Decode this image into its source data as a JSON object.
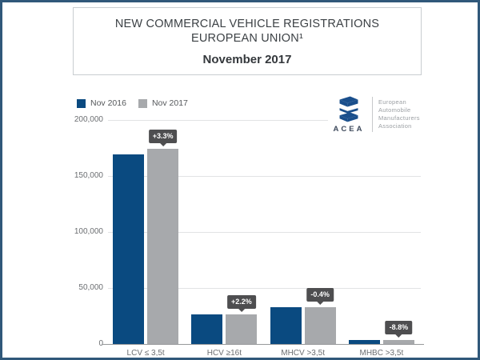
{
  "window": {
    "border_color": "#30587a"
  },
  "title_box": {
    "line1": "NEW COMMERCIAL VEHICLE REGISTRATIONS",
    "line2": "EUROPEAN UNION¹",
    "subtitle": "November 2017"
  },
  "legend": {
    "items": [
      {
        "label": "Nov 2016",
        "color": "#0a4a80"
      },
      {
        "label": "Nov 2017",
        "color": "#a7a9ac"
      }
    ]
  },
  "logo": {
    "icon": "stacked-layers-icon",
    "acronym": "ACEA",
    "org_lines": [
      "European",
      "Automobile",
      "Manufacturers",
      "Association"
    ],
    "mark_color": "#1a4f8c"
  },
  "chart_data": {
    "type": "bar",
    "title": "New Commercial Vehicle Registrations, European Union — November 2017",
    "categories": [
      "LCV ≤ 3,5t",
      "HCV ≥16t",
      "MHCV >3,5t",
      "MHBC >3,5t"
    ],
    "series": [
      {
        "name": "Nov 2016",
        "color": "#0a4a80",
        "values": [
          169000,
          26200,
          32900,
          3800
        ]
      },
      {
        "name": "Nov 2017",
        "color": "#a7a9ac",
        "values": [
          174600,
          26780,
          32770,
          3470
        ]
      }
    ],
    "pct_change_labels": [
      "+3.3%",
      "+2.2%",
      "-0.4%",
      "-8.8%"
    ],
    "xlabel": "",
    "ylabel": "",
    "ylim": [
      0,
      200000
    ],
    "yticks": [
      0,
      50000,
      100000,
      150000,
      200000
    ],
    "ytick_labels": [
      "0",
      "50,000",
      "100,000",
      "150,000",
      "200,000"
    ],
    "grid": true,
    "legend_position": "top-left",
    "annotations": "percent change shown in dark tooltip above each Nov 2017 bar"
  },
  "colors": {
    "tooltip_bg": "#4e4e50",
    "tooltip_text": "#ffffff",
    "gridline": "#e2e3e4",
    "axis_line": "#97999b",
    "axis_text": "#6b6e71",
    "title_text": "#3c4145"
  }
}
